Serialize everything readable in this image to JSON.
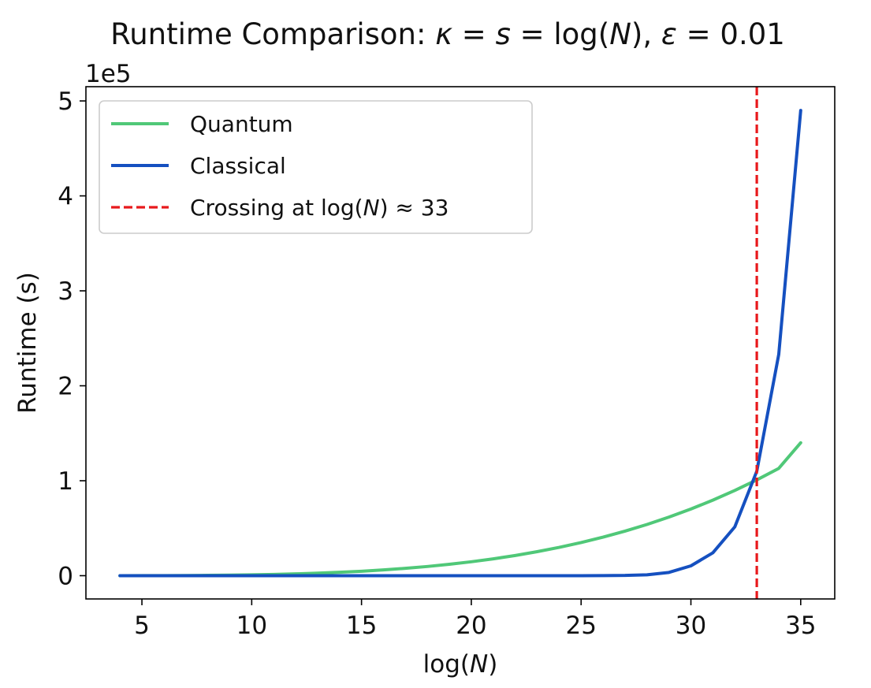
{
  "chart_data": {
    "type": "line",
    "title": {
      "prefix": "Runtime Comparison: ",
      "kappa": "κ",
      "eq1": " = ",
      "s": "s",
      "eq2": " = log(",
      "N": "N",
      "close": "), ",
      "epsilon": "ε",
      "eq3": " = 0.01"
    },
    "xlabel": {
      "prefix": "log(",
      "var": "N",
      "suffix": ")"
    },
    "ylabel": "Runtime (s)",
    "y_offset_label": "1e5",
    "x_ticks": [
      "5",
      "10",
      "15",
      "20",
      "25",
      "30",
      "35"
    ],
    "x_tick_values": [
      5,
      10,
      15,
      20,
      25,
      30,
      35
    ],
    "y_ticks": [
      "0",
      "1",
      "2",
      "3",
      "4",
      "5"
    ],
    "y_tick_values": [
      0,
      1,
      2,
      3,
      4,
      5
    ],
    "xlim": [
      2.45,
      36.55
    ],
    "ylim": [
      -0.245,
      5.15
    ],
    "y_units": "x 1e5 s",
    "x": [
      4,
      5,
      6,
      7,
      8,
      9,
      10,
      11,
      12,
      13,
      14,
      15,
      16,
      17,
      18,
      19,
      20,
      21,
      22,
      23,
      24,
      25,
      26,
      27,
      28,
      29,
      30,
      31,
      32,
      33,
      34,
      35
    ],
    "series": [
      {
        "name": "Quantum",
        "color": "#50c878",
        "values": [
          0.0002,
          0.0005,
          0.0011,
          0.0021,
          0.0036,
          0.0059,
          0.0091,
          0.0135,
          0.0192,
          0.0265,
          0.0357,
          0.047,
          0.0608,
          0.0773,
          0.0969,
          0.1199,
          0.1466,
          0.1775,
          0.2127,
          0.2528,
          0.2981,
          0.349,
          0.4059,
          0.4692,
          0.5394,
          0.6169,
          0.7021,
          0.7955,
          0.8976,
          1.0089,
          1.1299,
          1.4
        ]
      },
      {
        "name": "Classical",
        "color": "#1550c0",
        "values": [
          0,
          0,
          0,
          0,
          0,
          0,
          0,
          0,
          0,
          0,
          0,
          0,
          0,
          0,
          0,
          0,
          0,
          0,
          0,
          0,
          0.0001,
          0.0003,
          0.0008,
          0.0025,
          0.0094,
          0.0345,
          0.1034,
          0.2412,
          0.5145,
          1.1,
          2.33,
          4.9
        ]
      }
    ],
    "crossing": {
      "x": 33,
      "color": "#e8191c",
      "legend": {
        "prefix": "Crossing at log(",
        "var": "N",
        "suffix": ") ≈ 33"
      }
    },
    "legend_position": "top-left"
  }
}
